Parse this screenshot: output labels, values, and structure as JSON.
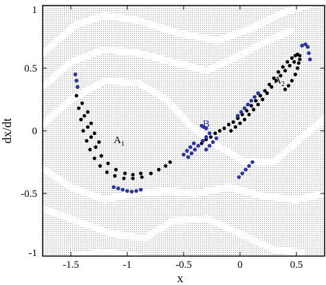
{
  "chart_data": {
    "type": "scatter",
    "xlabel": "x",
    "ylabel": "dx/dt",
    "xlim": [
      -1.75,
      0.75
    ],
    "ylim": [
      -1,
      1
    ],
    "xticks": [
      -1.5,
      -1,
      -0.5,
      0,
      0.5
    ],
    "xtick_labels": [
      "-1.5",
      "-1",
      "-0.5",
      "0",
      "0.5"
    ],
    "yticks": [
      1,
      0.5,
      0,
      -0.5,
      -1
    ],
    "ytick_labels": [
      "1",
      "0.5",
      "0",
      "-0.5",
      "-1"
    ],
    "grid": false,
    "colors": {
      "attractor": "#000000",
      "blue_sets": "#2b35a6",
      "basin_dots": "#b4b4b4",
      "background": "#ffffff"
    },
    "basin_bands": [
      {
        "points": [
          [
            -1.75,
            0.62
          ],
          [
            -1.45,
            0.85
          ],
          [
            -1.2,
            0.92
          ],
          [
            -0.9,
            0.88
          ],
          [
            -0.55,
            0.78
          ],
          [
            -0.2,
            0.72
          ],
          [
            0.1,
            0.82
          ],
          [
            0.4,
            0.95
          ],
          [
            0.6,
            1.0
          ]
        ]
      },
      {
        "points": [
          [
            -1.75,
            0.35
          ],
          [
            -1.5,
            0.55
          ],
          [
            -1.2,
            0.65
          ],
          [
            -0.9,
            0.62
          ],
          [
            -0.6,
            0.55
          ],
          [
            -0.3,
            0.48
          ],
          [
            -0.05,
            0.58
          ],
          [
            0.2,
            0.7
          ],
          [
            0.45,
            0.8
          ]
        ]
      },
      {
        "points": [
          [
            -1.75,
            0.05
          ],
          [
            -1.5,
            0.25
          ],
          [
            -1.2,
            0.4
          ],
          [
            -0.9,
            0.38
          ],
          [
            -0.65,
            0.25
          ],
          [
            -0.45,
            0.05
          ],
          [
            -0.2,
            -0.12
          ],
          [
            0.05,
            -0.25
          ],
          [
            0.3,
            -0.25
          ],
          [
            0.55,
            -0.05
          ],
          [
            0.75,
            0.1
          ]
        ]
      },
      {
        "points": [
          [
            -1.75,
            -0.3
          ],
          [
            -1.5,
            -0.45
          ],
          [
            -1.2,
            -0.55
          ],
          [
            -0.95,
            -0.5
          ],
          [
            -0.65,
            -0.48
          ],
          [
            -0.4,
            -0.5
          ],
          [
            -0.1,
            -0.45
          ],
          [
            0.2,
            -0.52
          ],
          [
            0.5,
            -0.55
          ],
          [
            0.75,
            -0.5
          ]
        ]
      },
      {
        "points": [
          [
            -1.75,
            -0.62
          ],
          [
            -1.45,
            -0.72
          ],
          [
            -1.15,
            -0.82
          ],
          [
            -0.85,
            -0.86
          ],
          [
            -0.6,
            -0.72
          ],
          [
            -0.3,
            -0.7
          ],
          [
            0.0,
            -0.82
          ],
          [
            0.3,
            -0.95
          ],
          [
            0.55,
            -0.97
          ]
        ]
      },
      {
        "points": [
          [
            -1.5,
            -1.0
          ],
          [
            -1.2,
            -0.97
          ],
          [
            -0.9,
            -1.0
          ]
        ]
      }
    ],
    "series": [
      {
        "points": [
          [
            -1.45,
            0.28
          ],
          [
            -1.43,
            0.18
          ],
          [
            -1.41,
            0.09
          ],
          [
            -1.39,
            0.0
          ],
          [
            -1.36,
            -0.08
          ],
          [
            -1.33,
            -0.15
          ],
          [
            -1.29,
            -0.22
          ],
          [
            -1.24,
            -0.28
          ],
          [
            -1.18,
            -0.33
          ],
          [
            -1.11,
            -0.36
          ],
          [
            -1.03,
            -0.38
          ],
          [
            -0.95,
            -0.38
          ],
          [
            -0.87,
            -0.37
          ],
          [
            -0.79,
            -0.34
          ],
          [
            -0.72,
            -0.31
          ],
          [
            -0.66,
            -0.28
          ],
          [
            -0.62,
            -0.25
          ],
          [
            -1.4,
            0.22
          ],
          [
            -1.38,
            0.12
          ],
          [
            -1.35,
            0.03
          ],
          [
            -1.32,
            -0.05
          ],
          [
            -1.28,
            -0.13
          ],
          [
            -1.23,
            -0.2
          ],
          [
            -1.17,
            -0.26
          ],
          [
            -1.1,
            -0.31
          ],
          [
            -1.02,
            -0.34
          ],
          [
            -0.95,
            -0.35
          ],
          [
            -0.88,
            -0.34
          ],
          [
            -1.35,
            0.15
          ],
          [
            -1.32,
            0.06
          ],
          [
            -1.29,
            -0.02
          ],
          [
            -1.25,
            -0.09
          ],
          [
            -0.34,
            -0.1
          ],
          [
            -0.3,
            -0.07
          ],
          [
            -0.26,
            -0.05
          ],
          [
            -0.22,
            -0.02
          ],
          [
            -0.18,
            0.0
          ],
          [
            -0.14,
            0.02
          ],
          [
            -0.1,
            0.05
          ],
          [
            -0.06,
            0.07
          ],
          [
            -0.02,
            0.1
          ],
          [
            0.02,
            0.13
          ],
          [
            0.06,
            0.16
          ],
          [
            0.1,
            0.2
          ],
          [
            0.14,
            0.24
          ],
          [
            0.18,
            0.28
          ],
          [
            0.22,
            0.32
          ],
          [
            0.26,
            0.37
          ],
          [
            0.3,
            0.42
          ],
          [
            0.34,
            0.47
          ],
          [
            0.38,
            0.51
          ],
          [
            0.42,
            0.55
          ],
          [
            0.46,
            0.58
          ],
          [
            0.49,
            0.6
          ],
          [
            0.51,
            0.61
          ],
          [
            0.53,
            0.6
          ],
          [
            -0.08,
            0.0
          ],
          [
            -0.04,
            0.03
          ],
          [
            0.0,
            0.06
          ],
          [
            0.04,
            0.09
          ],
          [
            0.08,
            0.13
          ],
          [
            0.12,
            0.17
          ],
          [
            0.16,
            0.21
          ],
          [
            0.2,
            0.25
          ],
          [
            0.24,
            0.3
          ],
          [
            0.28,
            0.35
          ],
          [
            0.32,
            0.4
          ],
          [
            0.36,
            0.44
          ],
          [
            0.4,
            0.48
          ],
          [
            0.44,
            0.52
          ],
          [
            0.48,
            0.55
          ],
          [
            0.4,
            0.33
          ],
          [
            0.43,
            0.36
          ],
          [
            0.46,
            0.4
          ],
          [
            0.49,
            0.45
          ],
          [
            0.51,
            0.5
          ],
          [
            0.52,
            0.54
          ],
          [
            0.53,
            0.57
          ]
        ]
      },
      {
        "points": [
          [
            -1.46,
            0.45
          ],
          [
            -1.45,
            0.4
          ],
          [
            -1.44,
            0.35
          ],
          [
            -1.04,
            -0.47
          ],
          [
            -1.0,
            -0.48
          ],
          [
            -0.96,
            -0.485
          ],
          [
            -0.92,
            -0.48
          ],
          [
            -0.88,
            -0.47
          ],
          [
            -1.08,
            -0.46
          ],
          [
            -1.12,
            -0.45
          ],
          [
            -0.5,
            -0.19
          ],
          [
            -0.47,
            -0.16
          ],
          [
            -0.44,
            -0.13
          ],
          [
            -0.41,
            -0.1
          ],
          [
            -0.46,
            -0.21
          ],
          [
            -0.43,
            -0.18
          ],
          [
            -0.4,
            -0.15
          ],
          [
            -0.37,
            -0.12
          ],
          [
            -0.33,
            -0.08
          ],
          [
            -0.3,
            -0.05
          ],
          [
            -0.27,
            -0.02
          ],
          [
            -0.3,
            -0.15
          ],
          [
            -0.27,
            -0.12
          ],
          [
            -0.24,
            -0.09
          ],
          [
            -0.21,
            -0.06
          ],
          [
            -0.34,
            0.04
          ],
          [
            -0.32,
            0.03
          ],
          [
            -0.3,
            0.02
          ],
          [
            -0.02,
            0.12
          ],
          [
            0.01,
            0.15
          ],
          [
            0.04,
            0.18
          ],
          [
            0.07,
            0.21
          ],
          [
            0.1,
            0.24
          ],
          [
            0.13,
            0.27
          ],
          [
            0.16,
            0.3
          ],
          [
            -0.01,
            -0.37
          ],
          [
            0.02,
            -0.34
          ],
          [
            0.05,
            -0.31
          ],
          [
            0.08,
            -0.28
          ],
          [
            0.11,
            -0.25
          ],
          [
            0.55,
            0.68
          ],
          [
            0.58,
            0.69
          ],
          [
            0.6,
            0.67
          ],
          [
            0.61,
            0.62
          ],
          [
            0.62,
            0.57
          ]
        ]
      }
    ],
    "annotations": [
      {
        "label": "A",
        "sub": "1",
        "x": -1.12,
        "y": -0.1,
        "color": "#000000"
      },
      {
        "label": "A",
        "sub": "2",
        "x": 0.3,
        "y": 0.38,
        "color": "#000000"
      },
      {
        "label": "B",
        "sub": "",
        "x": -0.33,
        "y": 0.03,
        "color": "#2b35a6"
      }
    ]
  }
}
